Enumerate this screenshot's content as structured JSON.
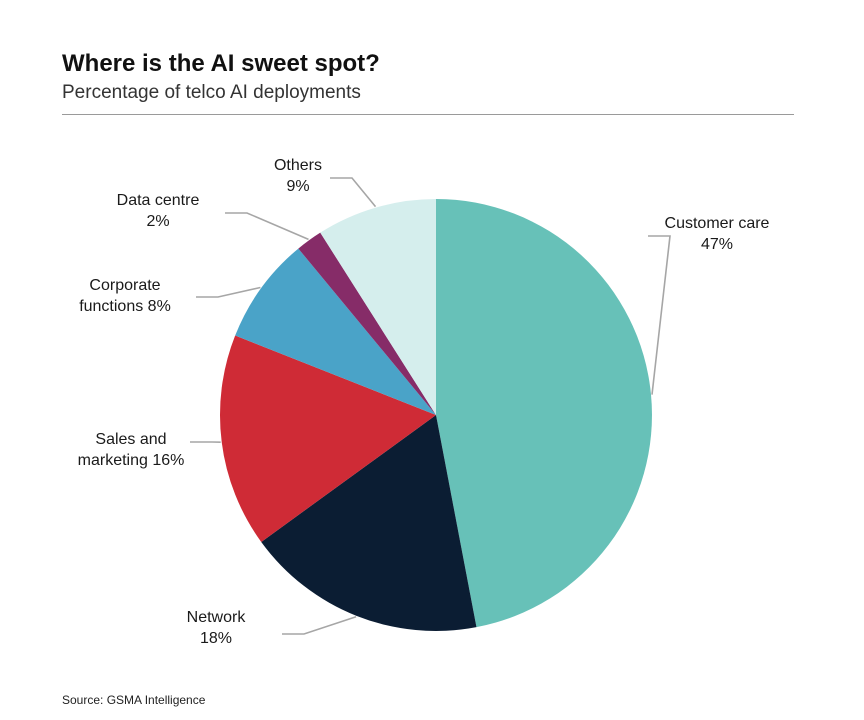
{
  "header": {
    "title": "Where is the AI sweet spot?",
    "subtitle": "Percentage of telco AI deployments"
  },
  "footer": {
    "source": "Source: GSMA Intelligence"
  },
  "chart_data": {
    "type": "pie",
    "title": "Where is the AI sweet spot?",
    "subtitle": "Percentage of telco AI deployments",
    "start": "12 o'clock",
    "direction": "clockwise",
    "slices": [
      {
        "label": "Customer care",
        "value": 47,
        "color": "#67c1b8",
        "label_lines": [
          "Customer care",
          "47%"
        ]
      },
      {
        "label": "Network",
        "value": 18,
        "color": "#0b1d33",
        "label_lines": [
          "Network",
          "18%"
        ]
      },
      {
        "label": "Sales and marketing",
        "value": 16,
        "color": "#cf2b36",
        "label_lines": [
          "Sales and",
          "marketing 16%"
        ]
      },
      {
        "label": "Corporate functions",
        "value": 8,
        "color": "#4aa3c8",
        "label_lines": [
          "Corporate",
          "functions 8%"
        ]
      },
      {
        "label": "Data centre",
        "value": 2,
        "color": "#862c68",
        "label_lines": [
          "Data centre",
          "2%"
        ]
      },
      {
        "label": "Others",
        "value": 9,
        "color": "#d5eeed",
        "label_lines": [
          "Others",
          "9%"
        ]
      }
    ],
    "source": "Source: GSMA Intelligence"
  }
}
